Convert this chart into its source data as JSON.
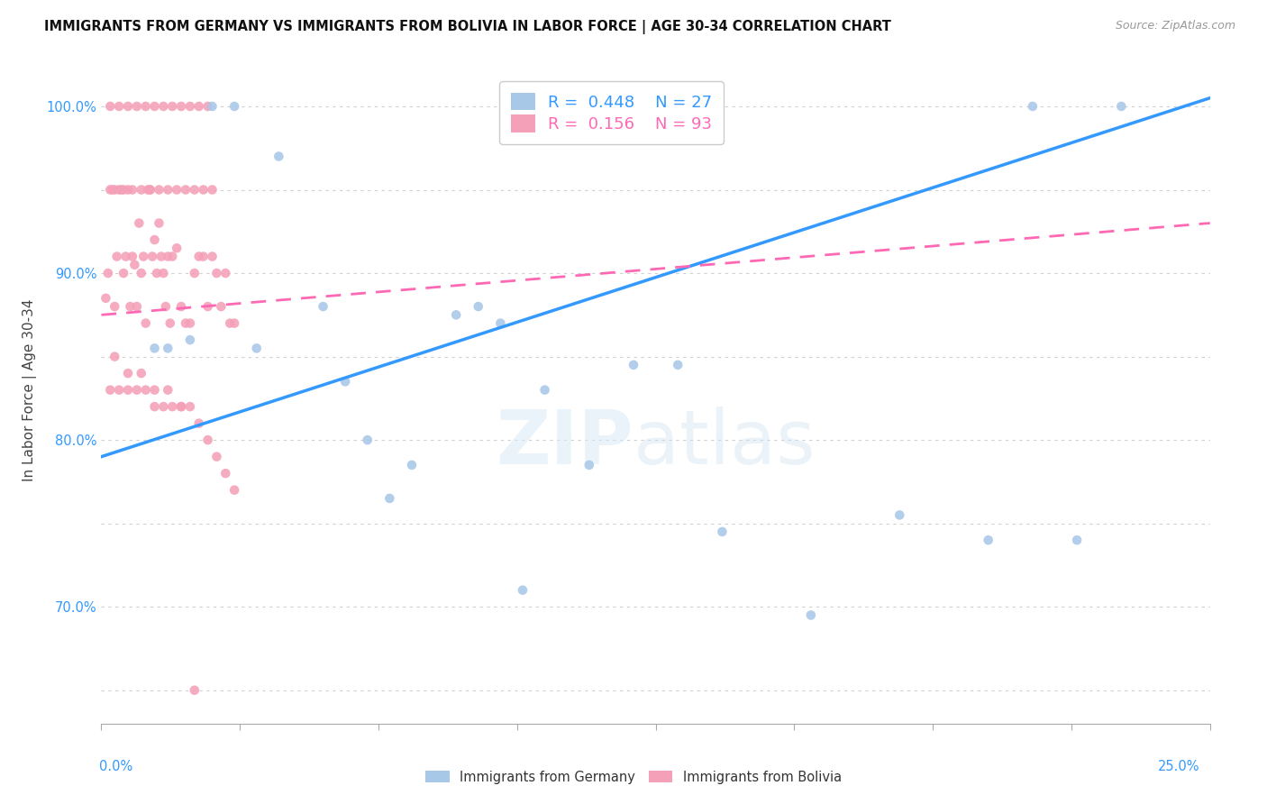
{
  "title": "IMMIGRANTS FROM GERMANY VS IMMIGRANTS FROM BOLIVIA IN LABOR FORCE | AGE 30-34 CORRELATION CHART",
  "source": "Source: ZipAtlas.com",
  "ylabel": "In Labor Force | Age 30-34",
  "x_range": [
    0.0,
    25.0
  ],
  "y_range": [
    63.0,
    103.0
  ],
  "germany_color": "#a8c8e8",
  "bolivia_color": "#f4a0b8",
  "trendline_germany_color": "#3399ff",
  "trendline_bolivia_color": "#ff69b4",
  "background_color": "#ffffff",
  "R_germany": 0.448,
  "N_germany": 27,
  "R_bolivia": 0.156,
  "N_bolivia": 93,
  "germany_x": [
    1.2,
    1.5,
    2.0,
    2.5,
    3.0,
    3.5,
    4.0,
    5.0,
    5.5,
    6.0,
    6.5,
    7.0,
    8.0,
    9.0,
    9.5,
    10.0,
    11.0,
    12.0,
    13.0,
    14.0,
    16.0,
    18.0,
    20.0,
    21.0,
    22.0,
    23.0,
    8.5
  ],
  "germany_y": [
    85.5,
    85.5,
    86.0,
    100.0,
    100.0,
    85.5,
    97.0,
    88.0,
    83.5,
    80.0,
    76.5,
    78.5,
    87.5,
    87.0,
    71.0,
    83.0,
    78.5,
    84.5,
    84.5,
    74.5,
    69.5,
    75.5,
    74.0,
    100.0,
    74.0,
    100.0,
    88.0
  ],
  "bolivia_x": [
    0.1,
    0.15,
    0.2,
    0.25,
    0.3,
    0.35,
    0.4,
    0.45,
    0.5,
    0.55,
    0.6,
    0.65,
    0.7,
    0.75,
    0.8,
    0.85,
    0.9,
    0.95,
    1.0,
    1.05,
    1.1,
    1.15,
    1.2,
    1.25,
    1.3,
    1.35,
    1.4,
    1.45,
    1.5,
    1.55,
    1.6,
    1.7,
    1.8,
    1.9,
    2.0,
    2.1,
    2.2,
    2.3,
    2.4,
    2.5,
    2.6,
    2.7,
    2.8,
    2.9,
    3.0,
    0.2,
    0.4,
    0.6,
    0.8,
    1.0,
    1.2,
    1.4,
    1.6,
    1.8,
    2.0,
    2.2,
    2.4,
    0.3,
    0.5,
    0.7,
    0.9,
    1.1,
    1.3,
    1.5,
    1.7,
    1.9,
    2.1,
    2.3,
    2.5,
    0.2,
    0.4,
    0.6,
    0.8,
    1.0,
    1.2,
    1.4,
    1.6,
    1.8,
    2.0,
    2.2,
    2.4,
    2.6,
    2.8,
    3.0,
    0.3,
    0.6,
    0.9,
    1.2,
    1.5,
    1.8,
    2.1
  ],
  "bolivia_y": [
    88.5,
    90.0,
    95.0,
    95.0,
    88.0,
    91.0,
    95.0,
    95.0,
    90.0,
    91.0,
    95.0,
    88.0,
    91.0,
    90.5,
    88.0,
    93.0,
    90.0,
    91.0,
    87.0,
    95.0,
    95.0,
    91.0,
    92.0,
    90.0,
    93.0,
    91.0,
    90.0,
    88.0,
    91.0,
    87.0,
    91.0,
    91.5,
    88.0,
    87.0,
    87.0,
    90.0,
    91.0,
    91.0,
    88.0,
    91.0,
    90.0,
    88.0,
    90.0,
    87.0,
    87.0,
    100.0,
    100.0,
    100.0,
    100.0,
    100.0,
    100.0,
    100.0,
    100.0,
    100.0,
    100.0,
    100.0,
    100.0,
    95.0,
    95.0,
    95.0,
    95.0,
    95.0,
    95.0,
    95.0,
    95.0,
    95.0,
    95.0,
    95.0,
    95.0,
    83.0,
    83.0,
    83.0,
    83.0,
    83.0,
    82.0,
    82.0,
    82.0,
    82.0,
    82.0,
    81.0,
    80.0,
    79.0,
    78.0,
    77.0,
    85.0,
    84.0,
    84.0,
    83.0,
    83.0,
    82.0,
    65.0
  ]
}
